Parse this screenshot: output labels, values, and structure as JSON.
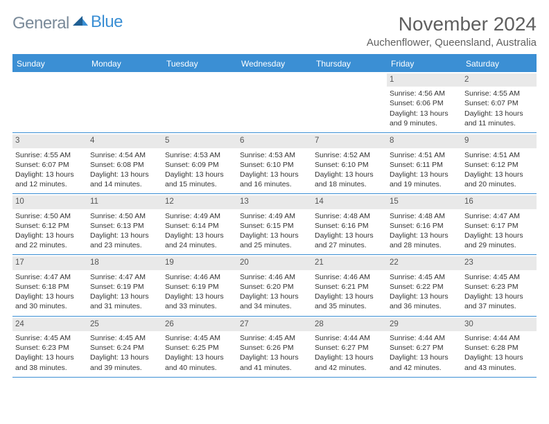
{
  "brand": {
    "part1": "General",
    "part2": "Blue"
  },
  "brand_colors": {
    "part1": "#7a8a99",
    "part2": "#3b8fd4"
  },
  "title": "November 2024",
  "location": "Auchenflower, Queensland, Australia",
  "header_bg": "#3b8fd4",
  "header_fg": "#ffffff",
  "divider_color": "#3b8fd4",
  "daynum_bg": "#e9e9e9",
  "weekdays": [
    "Sunday",
    "Monday",
    "Tuesday",
    "Wednesday",
    "Thursday",
    "Friday",
    "Saturday"
  ],
  "weeks": [
    [
      {
        "day": "",
        "sunrise": "",
        "sunset": "",
        "daylight": ""
      },
      {
        "day": "",
        "sunrise": "",
        "sunset": "",
        "daylight": ""
      },
      {
        "day": "",
        "sunrise": "",
        "sunset": "",
        "daylight": ""
      },
      {
        "day": "",
        "sunrise": "",
        "sunset": "",
        "daylight": ""
      },
      {
        "day": "",
        "sunrise": "",
        "sunset": "",
        "daylight": ""
      },
      {
        "day": "1",
        "sunrise": "Sunrise: 4:56 AM",
        "sunset": "Sunset: 6:06 PM",
        "daylight": "Daylight: 13 hours and 9 minutes."
      },
      {
        "day": "2",
        "sunrise": "Sunrise: 4:55 AM",
        "sunset": "Sunset: 6:07 PM",
        "daylight": "Daylight: 13 hours and 11 minutes."
      }
    ],
    [
      {
        "day": "3",
        "sunrise": "Sunrise: 4:55 AM",
        "sunset": "Sunset: 6:07 PM",
        "daylight": "Daylight: 13 hours and 12 minutes."
      },
      {
        "day": "4",
        "sunrise": "Sunrise: 4:54 AM",
        "sunset": "Sunset: 6:08 PM",
        "daylight": "Daylight: 13 hours and 14 minutes."
      },
      {
        "day": "5",
        "sunrise": "Sunrise: 4:53 AM",
        "sunset": "Sunset: 6:09 PM",
        "daylight": "Daylight: 13 hours and 15 minutes."
      },
      {
        "day": "6",
        "sunrise": "Sunrise: 4:53 AM",
        "sunset": "Sunset: 6:10 PM",
        "daylight": "Daylight: 13 hours and 16 minutes."
      },
      {
        "day": "7",
        "sunrise": "Sunrise: 4:52 AM",
        "sunset": "Sunset: 6:10 PM",
        "daylight": "Daylight: 13 hours and 18 minutes."
      },
      {
        "day": "8",
        "sunrise": "Sunrise: 4:51 AM",
        "sunset": "Sunset: 6:11 PM",
        "daylight": "Daylight: 13 hours and 19 minutes."
      },
      {
        "day": "9",
        "sunrise": "Sunrise: 4:51 AM",
        "sunset": "Sunset: 6:12 PM",
        "daylight": "Daylight: 13 hours and 20 minutes."
      }
    ],
    [
      {
        "day": "10",
        "sunrise": "Sunrise: 4:50 AM",
        "sunset": "Sunset: 6:12 PM",
        "daylight": "Daylight: 13 hours and 22 minutes."
      },
      {
        "day": "11",
        "sunrise": "Sunrise: 4:50 AM",
        "sunset": "Sunset: 6:13 PM",
        "daylight": "Daylight: 13 hours and 23 minutes."
      },
      {
        "day": "12",
        "sunrise": "Sunrise: 4:49 AM",
        "sunset": "Sunset: 6:14 PM",
        "daylight": "Daylight: 13 hours and 24 minutes."
      },
      {
        "day": "13",
        "sunrise": "Sunrise: 4:49 AM",
        "sunset": "Sunset: 6:15 PM",
        "daylight": "Daylight: 13 hours and 25 minutes."
      },
      {
        "day": "14",
        "sunrise": "Sunrise: 4:48 AM",
        "sunset": "Sunset: 6:16 PM",
        "daylight": "Daylight: 13 hours and 27 minutes."
      },
      {
        "day": "15",
        "sunrise": "Sunrise: 4:48 AM",
        "sunset": "Sunset: 6:16 PM",
        "daylight": "Daylight: 13 hours and 28 minutes."
      },
      {
        "day": "16",
        "sunrise": "Sunrise: 4:47 AM",
        "sunset": "Sunset: 6:17 PM",
        "daylight": "Daylight: 13 hours and 29 minutes."
      }
    ],
    [
      {
        "day": "17",
        "sunrise": "Sunrise: 4:47 AM",
        "sunset": "Sunset: 6:18 PM",
        "daylight": "Daylight: 13 hours and 30 minutes."
      },
      {
        "day": "18",
        "sunrise": "Sunrise: 4:47 AM",
        "sunset": "Sunset: 6:19 PM",
        "daylight": "Daylight: 13 hours and 31 minutes."
      },
      {
        "day": "19",
        "sunrise": "Sunrise: 4:46 AM",
        "sunset": "Sunset: 6:19 PM",
        "daylight": "Daylight: 13 hours and 33 minutes."
      },
      {
        "day": "20",
        "sunrise": "Sunrise: 4:46 AM",
        "sunset": "Sunset: 6:20 PM",
        "daylight": "Daylight: 13 hours and 34 minutes."
      },
      {
        "day": "21",
        "sunrise": "Sunrise: 4:46 AM",
        "sunset": "Sunset: 6:21 PM",
        "daylight": "Daylight: 13 hours and 35 minutes."
      },
      {
        "day": "22",
        "sunrise": "Sunrise: 4:45 AM",
        "sunset": "Sunset: 6:22 PM",
        "daylight": "Daylight: 13 hours and 36 minutes."
      },
      {
        "day": "23",
        "sunrise": "Sunrise: 4:45 AM",
        "sunset": "Sunset: 6:23 PM",
        "daylight": "Daylight: 13 hours and 37 minutes."
      }
    ],
    [
      {
        "day": "24",
        "sunrise": "Sunrise: 4:45 AM",
        "sunset": "Sunset: 6:23 PM",
        "daylight": "Daylight: 13 hours and 38 minutes."
      },
      {
        "day": "25",
        "sunrise": "Sunrise: 4:45 AM",
        "sunset": "Sunset: 6:24 PM",
        "daylight": "Daylight: 13 hours and 39 minutes."
      },
      {
        "day": "26",
        "sunrise": "Sunrise: 4:45 AM",
        "sunset": "Sunset: 6:25 PM",
        "daylight": "Daylight: 13 hours and 40 minutes."
      },
      {
        "day": "27",
        "sunrise": "Sunrise: 4:45 AM",
        "sunset": "Sunset: 6:26 PM",
        "daylight": "Daylight: 13 hours and 41 minutes."
      },
      {
        "day": "28",
        "sunrise": "Sunrise: 4:44 AM",
        "sunset": "Sunset: 6:27 PM",
        "daylight": "Daylight: 13 hours and 42 minutes."
      },
      {
        "day": "29",
        "sunrise": "Sunrise: 4:44 AM",
        "sunset": "Sunset: 6:27 PM",
        "daylight": "Daylight: 13 hours and 42 minutes."
      },
      {
        "day": "30",
        "sunrise": "Sunrise: 4:44 AM",
        "sunset": "Sunset: 6:28 PM",
        "daylight": "Daylight: 13 hours and 43 minutes."
      }
    ]
  ]
}
